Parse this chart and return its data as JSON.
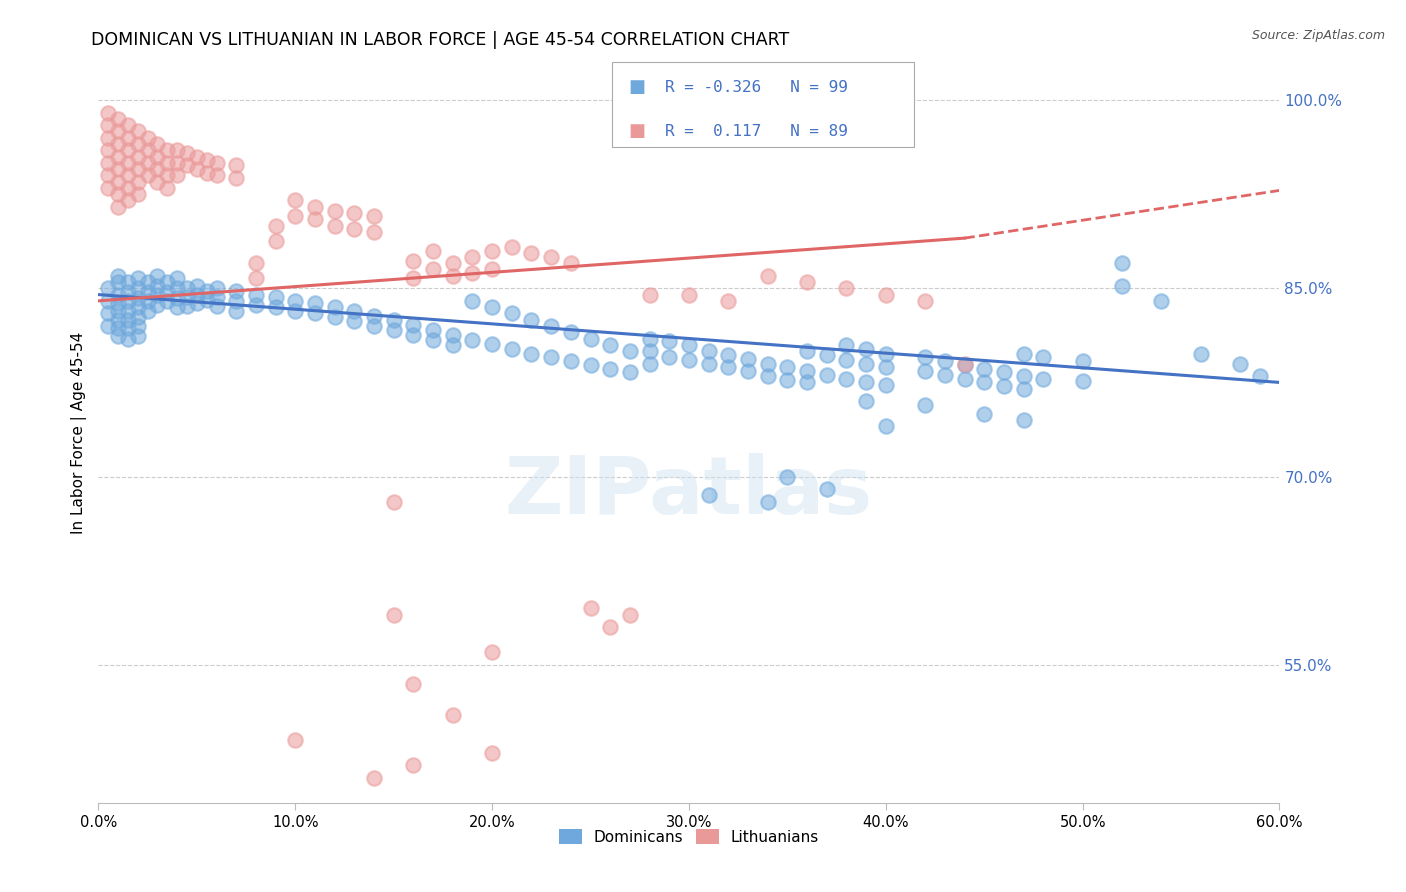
{
  "title": "DOMINICAN VS LITHUANIAN IN LABOR FORCE | AGE 45-54 CORRELATION CHART",
  "source": "Source: ZipAtlas.com",
  "ylabel": "In Labor Force | Age 45-54",
  "xlim": [
    0.0,
    0.6
  ],
  "ylim": [
    0.44,
    1.03
  ],
  "xtick_labels": [
    "0.0%",
    "10.0%",
    "20.0%",
    "30.0%",
    "40.0%",
    "50.0%",
    "60.0%"
  ],
  "xtick_values": [
    0.0,
    0.1,
    0.2,
    0.3,
    0.4,
    0.5,
    0.6
  ],
  "ytick_labels_right": [
    "100.0%",
    "85.0%",
    "70.0%",
    "55.0%"
  ],
  "ytick_values_right": [
    1.0,
    0.85,
    0.7,
    0.55
  ],
  "dominican_color": "#6fa8dc",
  "lithuanian_color": "#ea9999",
  "trendline_dominican_color": "#4472c4",
  "trendline_lithuanian_color": "#e06666",
  "legend_r_dominican": "-0.326",
  "legend_n_dominican": "99",
  "legend_r_lithuanian": " 0.117",
  "legend_n_lithuanian": "89",
  "watermark": "ZIPatlas",
  "dominican_points": [
    [
      0.005,
      0.85
    ],
    [
      0.005,
      0.84
    ],
    [
      0.005,
      0.83
    ],
    [
      0.005,
      0.82
    ],
    [
      0.01,
      0.86
    ],
    [
      0.01,
      0.855
    ],
    [
      0.01,
      0.845
    ],
    [
      0.01,
      0.838
    ],
    [
      0.01,
      0.832
    ],
    [
      0.01,
      0.825
    ],
    [
      0.01,
      0.818
    ],
    [
      0.01,
      0.812
    ],
    [
      0.015,
      0.855
    ],
    [
      0.015,
      0.847
    ],
    [
      0.015,
      0.84
    ],
    [
      0.015,
      0.832
    ],
    [
      0.015,
      0.825
    ],
    [
      0.015,
      0.818
    ],
    [
      0.015,
      0.81
    ],
    [
      0.02,
      0.858
    ],
    [
      0.02,
      0.85
    ],
    [
      0.02,
      0.842
    ],
    [
      0.02,
      0.835
    ],
    [
      0.02,
      0.827
    ],
    [
      0.02,
      0.82
    ],
    [
      0.02,
      0.812
    ],
    [
      0.025,
      0.855
    ],
    [
      0.025,
      0.847
    ],
    [
      0.025,
      0.84
    ],
    [
      0.025,
      0.832
    ],
    [
      0.03,
      0.86
    ],
    [
      0.03,
      0.852
    ],
    [
      0.03,
      0.845
    ],
    [
      0.03,
      0.837
    ],
    [
      0.035,
      0.855
    ],
    [
      0.035,
      0.847
    ],
    [
      0.035,
      0.84
    ],
    [
      0.04,
      0.858
    ],
    [
      0.04,
      0.85
    ],
    [
      0.04,
      0.842
    ],
    [
      0.04,
      0.835
    ],
    [
      0.045,
      0.85
    ],
    [
      0.045,
      0.843
    ],
    [
      0.045,
      0.836
    ],
    [
      0.05,
      0.852
    ],
    [
      0.05,
      0.845
    ],
    [
      0.05,
      0.838
    ],
    [
      0.055,
      0.848
    ],
    [
      0.055,
      0.841
    ],
    [
      0.06,
      0.85
    ],
    [
      0.06,
      0.843
    ],
    [
      0.06,
      0.836
    ],
    [
      0.07,
      0.848
    ],
    [
      0.07,
      0.84
    ],
    [
      0.07,
      0.832
    ],
    [
      0.08,
      0.845
    ],
    [
      0.08,
      0.837
    ],
    [
      0.09,
      0.843
    ],
    [
      0.09,
      0.835
    ],
    [
      0.1,
      0.84
    ],
    [
      0.1,
      0.832
    ],
    [
      0.11,
      0.838
    ],
    [
      0.11,
      0.83
    ],
    [
      0.12,
      0.835
    ],
    [
      0.12,
      0.827
    ],
    [
      0.13,
      0.832
    ],
    [
      0.13,
      0.824
    ],
    [
      0.14,
      0.828
    ],
    [
      0.14,
      0.82
    ],
    [
      0.15,
      0.825
    ],
    [
      0.15,
      0.817
    ],
    [
      0.16,
      0.821
    ],
    [
      0.16,
      0.813
    ],
    [
      0.17,
      0.817
    ],
    [
      0.17,
      0.809
    ],
    [
      0.18,
      0.813
    ],
    [
      0.18,
      0.805
    ],
    [
      0.19,
      0.84
    ],
    [
      0.19,
      0.809
    ],
    [
      0.2,
      0.835
    ],
    [
      0.2,
      0.806
    ],
    [
      0.21,
      0.83
    ],
    [
      0.21,
      0.802
    ],
    [
      0.22,
      0.825
    ],
    [
      0.22,
      0.798
    ],
    [
      0.23,
      0.82
    ],
    [
      0.23,
      0.795
    ],
    [
      0.24,
      0.815
    ],
    [
      0.24,
      0.792
    ],
    [
      0.25,
      0.81
    ],
    [
      0.25,
      0.789
    ],
    [
      0.26,
      0.805
    ],
    [
      0.26,
      0.786
    ],
    [
      0.27,
      0.8
    ],
    [
      0.27,
      0.783
    ],
    [
      0.28,
      0.81
    ],
    [
      0.28,
      0.8
    ],
    [
      0.28,
      0.79
    ],
    [
      0.29,
      0.808
    ],
    [
      0.29,
      0.795
    ],
    [
      0.3,
      0.805
    ],
    [
      0.3,
      0.793
    ],
    [
      0.31,
      0.8
    ],
    [
      0.31,
      0.79
    ],
    [
      0.32,
      0.797
    ],
    [
      0.32,
      0.787
    ],
    [
      0.33,
      0.794
    ],
    [
      0.33,
      0.784
    ],
    [
      0.34,
      0.79
    ],
    [
      0.34,
      0.78
    ],
    [
      0.35,
      0.787
    ],
    [
      0.35,
      0.777
    ],
    [
      0.36,
      0.8
    ],
    [
      0.36,
      0.784
    ],
    [
      0.36,
      0.775
    ],
    [
      0.37,
      0.797
    ],
    [
      0.37,
      0.781
    ],
    [
      0.38,
      0.805
    ],
    [
      0.38,
      0.793
    ],
    [
      0.38,
      0.778
    ],
    [
      0.39,
      0.802
    ],
    [
      0.39,
      0.79
    ],
    [
      0.39,
      0.775
    ],
    [
      0.4,
      0.798
    ],
    [
      0.4,
      0.787
    ],
    [
      0.4,
      0.773
    ],
    [
      0.42,
      0.795
    ],
    [
      0.42,
      0.784
    ],
    [
      0.43,
      0.792
    ],
    [
      0.43,
      0.781
    ],
    [
      0.44,
      0.789
    ],
    [
      0.44,
      0.778
    ],
    [
      0.45,
      0.786
    ],
    [
      0.45,
      0.775
    ],
    [
      0.46,
      0.783
    ],
    [
      0.46,
      0.772
    ],
    [
      0.47,
      0.798
    ],
    [
      0.47,
      0.78
    ],
    [
      0.47,
      0.77
    ],
    [
      0.48,
      0.795
    ],
    [
      0.48,
      0.778
    ],
    [
      0.5,
      0.792
    ],
    [
      0.5,
      0.776
    ],
    [
      0.52,
      0.87
    ],
    [
      0.52,
      0.852
    ],
    [
      0.54,
      0.84
    ],
    [
      0.56,
      0.798
    ],
    [
      0.58,
      0.79
    ],
    [
      0.59,
      0.78
    ],
    [
      0.31,
      0.685
    ],
    [
      0.35,
      0.7
    ],
    [
      0.39,
      0.76
    ],
    [
      0.4,
      0.74
    ],
    [
      0.42,
      0.757
    ],
    [
      0.45,
      0.75
    ],
    [
      0.47,
      0.745
    ],
    [
      0.34,
      0.68
    ],
    [
      0.37,
      0.69
    ]
  ],
  "lithuanian_points": [
    [
      0.005,
      0.99
    ],
    [
      0.005,
      0.98
    ],
    [
      0.005,
      0.97
    ],
    [
      0.005,
      0.96
    ],
    [
      0.005,
      0.95
    ],
    [
      0.005,
      0.94
    ],
    [
      0.005,
      0.93
    ],
    [
      0.01,
      0.985
    ],
    [
      0.01,
      0.975
    ],
    [
      0.01,
      0.965
    ],
    [
      0.01,
      0.955
    ],
    [
      0.01,
      0.945
    ],
    [
      0.01,
      0.935
    ],
    [
      0.01,
      0.925
    ],
    [
      0.01,
      0.915
    ],
    [
      0.015,
      0.98
    ],
    [
      0.015,
      0.97
    ],
    [
      0.015,
      0.96
    ],
    [
      0.015,
      0.95
    ],
    [
      0.015,
      0.94
    ],
    [
      0.015,
      0.93
    ],
    [
      0.015,
      0.92
    ],
    [
      0.02,
      0.975
    ],
    [
      0.02,
      0.965
    ],
    [
      0.02,
      0.955
    ],
    [
      0.02,
      0.945
    ],
    [
      0.02,
      0.935
    ],
    [
      0.02,
      0.925
    ],
    [
      0.025,
      0.97
    ],
    [
      0.025,
      0.96
    ],
    [
      0.025,
      0.95
    ],
    [
      0.025,
      0.94
    ],
    [
      0.03,
      0.965
    ],
    [
      0.03,
      0.955
    ],
    [
      0.03,
      0.945
    ],
    [
      0.03,
      0.935
    ],
    [
      0.035,
      0.96
    ],
    [
      0.035,
      0.95
    ],
    [
      0.035,
      0.94
    ],
    [
      0.035,
      0.93
    ],
    [
      0.04,
      0.96
    ],
    [
      0.04,
      0.95
    ],
    [
      0.04,
      0.94
    ],
    [
      0.045,
      0.958
    ],
    [
      0.045,
      0.948
    ],
    [
      0.05,
      0.955
    ],
    [
      0.05,
      0.945
    ],
    [
      0.055,
      0.952
    ],
    [
      0.055,
      0.942
    ],
    [
      0.06,
      0.95
    ],
    [
      0.06,
      0.94
    ],
    [
      0.07,
      0.948
    ],
    [
      0.07,
      0.938
    ],
    [
      0.08,
      0.87
    ],
    [
      0.08,
      0.858
    ],
    [
      0.09,
      0.9
    ],
    [
      0.09,
      0.888
    ],
    [
      0.1,
      0.92
    ],
    [
      0.1,
      0.908
    ],
    [
      0.11,
      0.915
    ],
    [
      0.11,
      0.905
    ],
    [
      0.12,
      0.912
    ],
    [
      0.12,
      0.9
    ],
    [
      0.13,
      0.91
    ],
    [
      0.13,
      0.897
    ],
    [
      0.14,
      0.908
    ],
    [
      0.14,
      0.895
    ],
    [
      0.15,
      0.68
    ],
    [
      0.16,
      0.872
    ],
    [
      0.16,
      0.858
    ],
    [
      0.17,
      0.88
    ],
    [
      0.17,
      0.865
    ],
    [
      0.18,
      0.87
    ],
    [
      0.18,
      0.86
    ],
    [
      0.19,
      0.875
    ],
    [
      0.19,
      0.862
    ],
    [
      0.2,
      0.88
    ],
    [
      0.2,
      0.865
    ],
    [
      0.21,
      0.883
    ],
    [
      0.22,
      0.878
    ],
    [
      0.23,
      0.875
    ],
    [
      0.24,
      0.87
    ],
    [
      0.25,
      0.595
    ],
    [
      0.26,
      0.58
    ],
    [
      0.28,
      0.845
    ],
    [
      0.3,
      0.845
    ],
    [
      0.32,
      0.84
    ],
    [
      0.34,
      0.86
    ],
    [
      0.36,
      0.855
    ],
    [
      0.38,
      0.85
    ],
    [
      0.4,
      0.845
    ],
    [
      0.42,
      0.84
    ],
    [
      0.44,
      0.79
    ],
    [
      0.15,
      0.59
    ],
    [
      0.2,
      0.56
    ],
    [
      0.16,
      0.535
    ],
    [
      0.18,
      0.51
    ],
    [
      0.1,
      0.49
    ],
    [
      0.2,
      0.48
    ],
    [
      0.16,
      0.47
    ],
    [
      0.14,
      0.46
    ],
    [
      0.27,
      0.59
    ]
  ]
}
